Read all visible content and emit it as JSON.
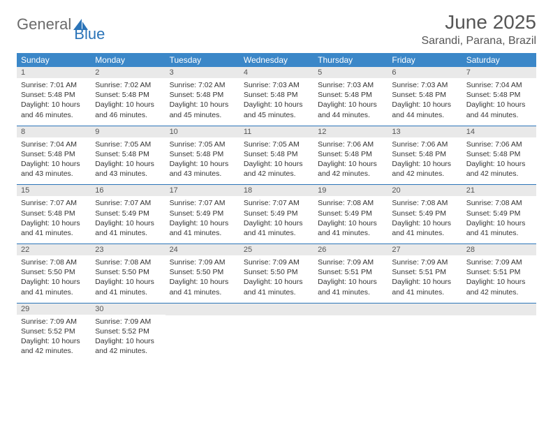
{
  "logo": {
    "text_general": "General",
    "text_blue": "Blue"
  },
  "header": {
    "month_title": "June 2025",
    "location": "Sarandi, Parana, Brazil"
  },
  "colors": {
    "header_bar": "#3b87c8",
    "header_bar_text": "#ffffff",
    "daynum_bg": "#e9e9e9",
    "week_divider": "#2b74b8",
    "title_text": "#555555",
    "body_text": "#333333",
    "logo_gray": "#6b6b6b",
    "logo_blue": "#2b74b8",
    "background": "#ffffff"
  },
  "typography": {
    "month_title_pt": 21,
    "location_pt": 12,
    "weekday_pt": 9,
    "daynum_pt": 8.5,
    "body_pt": 8,
    "logo_pt": 16
  },
  "weekdays": [
    "Sunday",
    "Monday",
    "Tuesday",
    "Wednesday",
    "Thursday",
    "Friday",
    "Saturday"
  ],
  "weeks": [
    [
      {
        "n": "1",
        "sr": "Sunrise: 7:01 AM",
        "ss": "Sunset: 5:48 PM",
        "d1": "Daylight: 10 hours",
        "d2": "and 46 minutes."
      },
      {
        "n": "2",
        "sr": "Sunrise: 7:02 AM",
        "ss": "Sunset: 5:48 PM",
        "d1": "Daylight: 10 hours",
        "d2": "and 46 minutes."
      },
      {
        "n": "3",
        "sr": "Sunrise: 7:02 AM",
        "ss": "Sunset: 5:48 PM",
        "d1": "Daylight: 10 hours",
        "d2": "and 45 minutes."
      },
      {
        "n": "4",
        "sr": "Sunrise: 7:03 AM",
        "ss": "Sunset: 5:48 PM",
        "d1": "Daylight: 10 hours",
        "d2": "and 45 minutes."
      },
      {
        "n": "5",
        "sr": "Sunrise: 7:03 AM",
        "ss": "Sunset: 5:48 PM",
        "d1": "Daylight: 10 hours",
        "d2": "and 44 minutes."
      },
      {
        "n": "6",
        "sr": "Sunrise: 7:03 AM",
        "ss": "Sunset: 5:48 PM",
        "d1": "Daylight: 10 hours",
        "d2": "and 44 minutes."
      },
      {
        "n": "7",
        "sr": "Sunrise: 7:04 AM",
        "ss": "Sunset: 5:48 PM",
        "d1": "Daylight: 10 hours",
        "d2": "and 44 minutes."
      }
    ],
    [
      {
        "n": "8",
        "sr": "Sunrise: 7:04 AM",
        "ss": "Sunset: 5:48 PM",
        "d1": "Daylight: 10 hours",
        "d2": "and 43 minutes."
      },
      {
        "n": "9",
        "sr": "Sunrise: 7:05 AM",
        "ss": "Sunset: 5:48 PM",
        "d1": "Daylight: 10 hours",
        "d2": "and 43 minutes."
      },
      {
        "n": "10",
        "sr": "Sunrise: 7:05 AM",
        "ss": "Sunset: 5:48 PM",
        "d1": "Daylight: 10 hours",
        "d2": "and 43 minutes."
      },
      {
        "n": "11",
        "sr": "Sunrise: 7:05 AM",
        "ss": "Sunset: 5:48 PM",
        "d1": "Daylight: 10 hours",
        "d2": "and 42 minutes."
      },
      {
        "n": "12",
        "sr": "Sunrise: 7:06 AM",
        "ss": "Sunset: 5:48 PM",
        "d1": "Daylight: 10 hours",
        "d2": "and 42 minutes."
      },
      {
        "n": "13",
        "sr": "Sunrise: 7:06 AM",
        "ss": "Sunset: 5:48 PM",
        "d1": "Daylight: 10 hours",
        "d2": "and 42 minutes."
      },
      {
        "n": "14",
        "sr": "Sunrise: 7:06 AM",
        "ss": "Sunset: 5:48 PM",
        "d1": "Daylight: 10 hours",
        "d2": "and 42 minutes."
      }
    ],
    [
      {
        "n": "15",
        "sr": "Sunrise: 7:07 AM",
        "ss": "Sunset: 5:48 PM",
        "d1": "Daylight: 10 hours",
        "d2": "and 41 minutes."
      },
      {
        "n": "16",
        "sr": "Sunrise: 7:07 AM",
        "ss": "Sunset: 5:49 PM",
        "d1": "Daylight: 10 hours",
        "d2": "and 41 minutes."
      },
      {
        "n": "17",
        "sr": "Sunrise: 7:07 AM",
        "ss": "Sunset: 5:49 PM",
        "d1": "Daylight: 10 hours",
        "d2": "and 41 minutes."
      },
      {
        "n": "18",
        "sr": "Sunrise: 7:07 AM",
        "ss": "Sunset: 5:49 PM",
        "d1": "Daylight: 10 hours",
        "d2": "and 41 minutes."
      },
      {
        "n": "19",
        "sr": "Sunrise: 7:08 AM",
        "ss": "Sunset: 5:49 PM",
        "d1": "Daylight: 10 hours",
        "d2": "and 41 minutes."
      },
      {
        "n": "20",
        "sr": "Sunrise: 7:08 AM",
        "ss": "Sunset: 5:49 PM",
        "d1": "Daylight: 10 hours",
        "d2": "and 41 minutes."
      },
      {
        "n": "21",
        "sr": "Sunrise: 7:08 AM",
        "ss": "Sunset: 5:49 PM",
        "d1": "Daylight: 10 hours",
        "d2": "and 41 minutes."
      }
    ],
    [
      {
        "n": "22",
        "sr": "Sunrise: 7:08 AM",
        "ss": "Sunset: 5:50 PM",
        "d1": "Daylight: 10 hours",
        "d2": "and 41 minutes."
      },
      {
        "n": "23",
        "sr": "Sunrise: 7:08 AM",
        "ss": "Sunset: 5:50 PM",
        "d1": "Daylight: 10 hours",
        "d2": "and 41 minutes."
      },
      {
        "n": "24",
        "sr": "Sunrise: 7:09 AM",
        "ss": "Sunset: 5:50 PM",
        "d1": "Daylight: 10 hours",
        "d2": "and 41 minutes."
      },
      {
        "n": "25",
        "sr": "Sunrise: 7:09 AM",
        "ss": "Sunset: 5:50 PM",
        "d1": "Daylight: 10 hours",
        "d2": "and 41 minutes."
      },
      {
        "n": "26",
        "sr": "Sunrise: 7:09 AM",
        "ss": "Sunset: 5:51 PM",
        "d1": "Daylight: 10 hours",
        "d2": "and 41 minutes."
      },
      {
        "n": "27",
        "sr": "Sunrise: 7:09 AM",
        "ss": "Sunset: 5:51 PM",
        "d1": "Daylight: 10 hours",
        "d2": "and 41 minutes."
      },
      {
        "n": "28",
        "sr": "Sunrise: 7:09 AM",
        "ss": "Sunset: 5:51 PM",
        "d1": "Daylight: 10 hours",
        "d2": "and 42 minutes."
      }
    ],
    [
      {
        "n": "29",
        "sr": "Sunrise: 7:09 AM",
        "ss": "Sunset: 5:52 PM",
        "d1": "Daylight: 10 hours",
        "d2": "and 42 minutes."
      },
      {
        "n": "30",
        "sr": "Sunrise: 7:09 AM",
        "ss": "Sunset: 5:52 PM",
        "d1": "Daylight: 10 hours",
        "d2": "and 42 minutes."
      },
      {
        "empty": true
      },
      {
        "empty": true
      },
      {
        "empty": true
      },
      {
        "empty": true
      },
      {
        "empty": true
      }
    ]
  ]
}
